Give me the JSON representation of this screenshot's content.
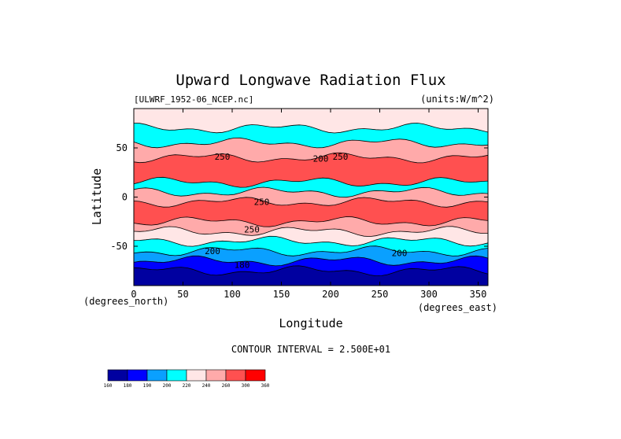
{
  "chart_data": {
    "type": "heatmap",
    "title": "Upward Longwave Radiation Flux",
    "source_label": "[ULWRF_1952-06_NCEP.nc]",
    "units_label": "(units:W/m^2)",
    "xlabel": "Longitude",
    "ylabel": "Latitude",
    "x_unit_label": "(degrees_east)",
    "y_unit_label": "(degrees_north)",
    "xlim": [
      0,
      360
    ],
    "ylim": [
      -90,
      90
    ],
    "x_ticks": [
      0,
      50,
      100,
      150,
      200,
      250,
      300,
      350
    ],
    "y_ticks": [
      50,
      0,
      -50
    ],
    "contour_interval_label": "CONTOUR INTERVAL = 2.500E+01",
    "contour_labels": [
      {
        "text": "250",
        "lon": 90,
        "lat": 38
      },
      {
        "text": "250",
        "lon": 210,
        "lat": 38
      },
      {
        "text": "200",
        "lon": 190,
        "lat": 36
      },
      {
        "text": "250",
        "lon": 130,
        "lat": -8
      },
      {
        "text": "250",
        "lon": 120,
        "lat": -36
      },
      {
        "text": "200",
        "lon": 80,
        "lat": -58
      },
      {
        "text": "200",
        "lon": 270,
        "lat": -60
      },
      {
        "text": "180",
        "lon": 110,
        "lat": -72
      }
    ],
    "colorbar": {
      "levels": [
        "160",
        "180",
        "190",
        "200",
        "220",
        "240",
        "260",
        "300",
        "360"
      ],
      "colors": [
        "#0000a0",
        "#0000ff",
        "#0aa0ff",
        "#00ffff",
        "#ffe6e6",
        "#ffaaaa",
        "#ff5050",
        "#ff0000"
      ]
    },
    "latitude_bands": [
      {
        "lat": [
          70,
          90
        ],
        "color": "#ffe6e6"
      },
      {
        "lat": [
          55,
          70
        ],
        "color": "#00ffff"
      },
      {
        "lat": [
          40,
          55
        ],
        "color": "#ffaaaa"
      },
      {
        "lat": [
          15,
          40
        ],
        "color": "#ff5050"
      },
      {
        "lat": [
          5,
          15
        ],
        "color": "#00ffff"
      },
      {
        "lat": [
          -5,
          5
        ],
        "color": "#ffaaaa"
      },
      {
        "lat": [
          -25,
          -5
        ],
        "color": "#ff5050"
      },
      {
        "lat": [
          -35,
          -25
        ],
        "color": "#ffaaaa"
      },
      {
        "lat": [
          -45,
          -35
        ],
        "color": "#ffe6e6"
      },
      {
        "lat": [
          -55,
          -45
        ],
        "color": "#00ffff"
      },
      {
        "lat": [
          -65,
          -55
        ],
        "color": "#0aa0ff"
      },
      {
        "lat": [
          -75,
          -65
        ],
        "color": "#0000ff"
      },
      {
        "lat": [
          -90,
          -75
        ],
        "color": "#0000a0"
      }
    ]
  }
}
